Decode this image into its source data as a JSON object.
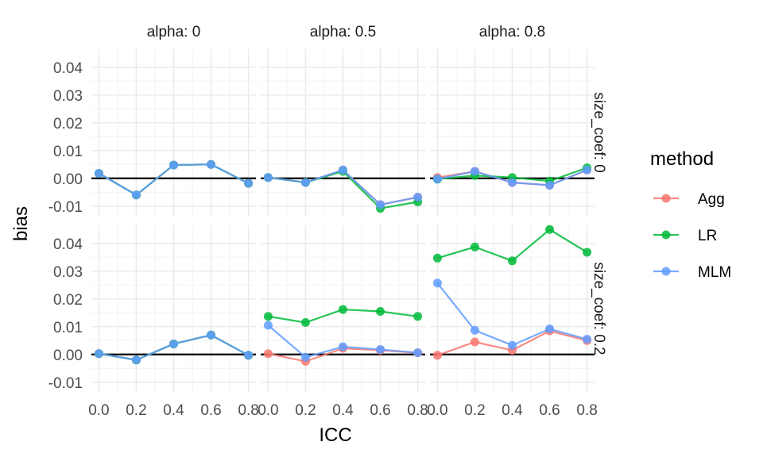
{
  "chart_data": {
    "type": "line",
    "xlabel": "ICC",
    "ylabel": "bias",
    "x_ticks": [
      "0.0",
      "0.2",
      "0.4",
      "0.6",
      "0.8"
    ],
    "x_values": [
      0.0,
      0.2,
      0.4,
      0.6,
      0.8
    ],
    "y_ticks": [
      "-0.01",
      "0.00",
      "0.01",
      "0.02",
      "0.03",
      "0.04"
    ],
    "y_tick_values": [
      -0.01,
      0.0,
      0.01,
      0.02,
      0.03,
      0.04
    ],
    "xlim": [
      -0.04,
      0.84
    ],
    "ylim": [
      -0.0135,
      0.0465
    ],
    "reference_line": 0.0,
    "grid": true,
    "legend": {
      "title": "method",
      "placement": "right",
      "entries": [
        {
          "name": "Agg",
          "color": "#F8766D"
        },
        {
          "name": "LR",
          "color": "#00BA38"
        },
        {
          "name": "MLM",
          "color": "#619CFF"
        }
      ]
    },
    "col_facets": [
      "alpha: 0",
      "alpha: 0.5",
      "alpha: 0.8"
    ],
    "row_facets": [
      "size_coef: 0",
      "size_coef: 0.2"
    ],
    "panels": [
      {
        "row": 0,
        "col": 0,
        "series": [
          {
            "name": "Agg",
            "values": [
              0.0018,
              -0.006,
              0.0048,
              0.005,
              -0.0018
            ]
          },
          {
            "name": "LR",
            "values": [
              0.0018,
              -0.006,
              0.0048,
              0.005,
              -0.0018
            ]
          },
          {
            "name": "MLM",
            "values": [
              0.0018,
              -0.006,
              0.0048,
              0.005,
              -0.0018
            ]
          }
        ]
      },
      {
        "row": 0,
        "col": 1,
        "series": [
          {
            "name": "Agg",
            "values": [
              0.0003,
              -0.0015,
              0.003,
              -0.0095,
              -0.0068
            ]
          },
          {
            "name": "LR",
            "values": [
              0.0003,
              -0.0015,
              0.0025,
              -0.0108,
              -0.0085
            ]
          },
          {
            "name": "MLM",
            "values": [
              0.0003,
              -0.0015,
              0.003,
              -0.0095,
              -0.0068
            ]
          }
        ]
      },
      {
        "row": 0,
        "col": 2,
        "series": [
          {
            "name": "Agg",
            "values": [
              0.0003,
              0.0025,
              -0.0015,
              -0.0025,
              0.003
            ]
          },
          {
            "name": "LR",
            "values": [
              -0.0003,
              0.001,
              0.0003,
              -0.001,
              0.0038
            ]
          },
          {
            "name": "MLM",
            "values": [
              -0.0003,
              0.0025,
              -0.0015,
              -0.0025,
              0.003
            ]
          }
        ]
      },
      {
        "row": 1,
        "col": 0,
        "series": [
          {
            "name": "Agg",
            "values": [
              0.0003,
              -0.002,
              0.0038,
              0.007,
              -0.0003
            ]
          },
          {
            "name": "LR",
            "values": [
              0.0003,
              -0.002,
              0.0038,
              0.007,
              -0.0003
            ]
          },
          {
            "name": "MLM",
            "values": [
              0.0003,
              -0.002,
              0.0038,
              0.007,
              -0.0003
            ]
          }
        ]
      },
      {
        "row": 1,
        "col": 1,
        "series": [
          {
            "name": "Agg",
            "values": [
              0.0003,
              -0.0025,
              0.0022,
              0.0015,
              0.0006
            ]
          },
          {
            "name": "LR",
            "values": [
              0.0137,
              0.0115,
              0.0162,
              0.0155,
              0.0137
            ]
          },
          {
            "name": "MLM",
            "values": [
              0.0105,
              -0.001,
              0.0028,
              0.0018,
              0.0006
            ]
          }
        ]
      },
      {
        "row": 1,
        "col": 2,
        "series": [
          {
            "name": "Agg",
            "values": [
              -0.0003,
              0.0045,
              0.0015,
              0.0085,
              0.005
            ]
          },
          {
            "name": "LR",
            "values": [
              0.0347,
              0.0387,
              0.0337,
              0.045,
              0.0368
            ]
          },
          {
            "name": "MLM",
            "values": [
              0.0257,
              0.0087,
              0.0033,
              0.0092,
              0.0055
            ]
          }
        ]
      }
    ]
  }
}
